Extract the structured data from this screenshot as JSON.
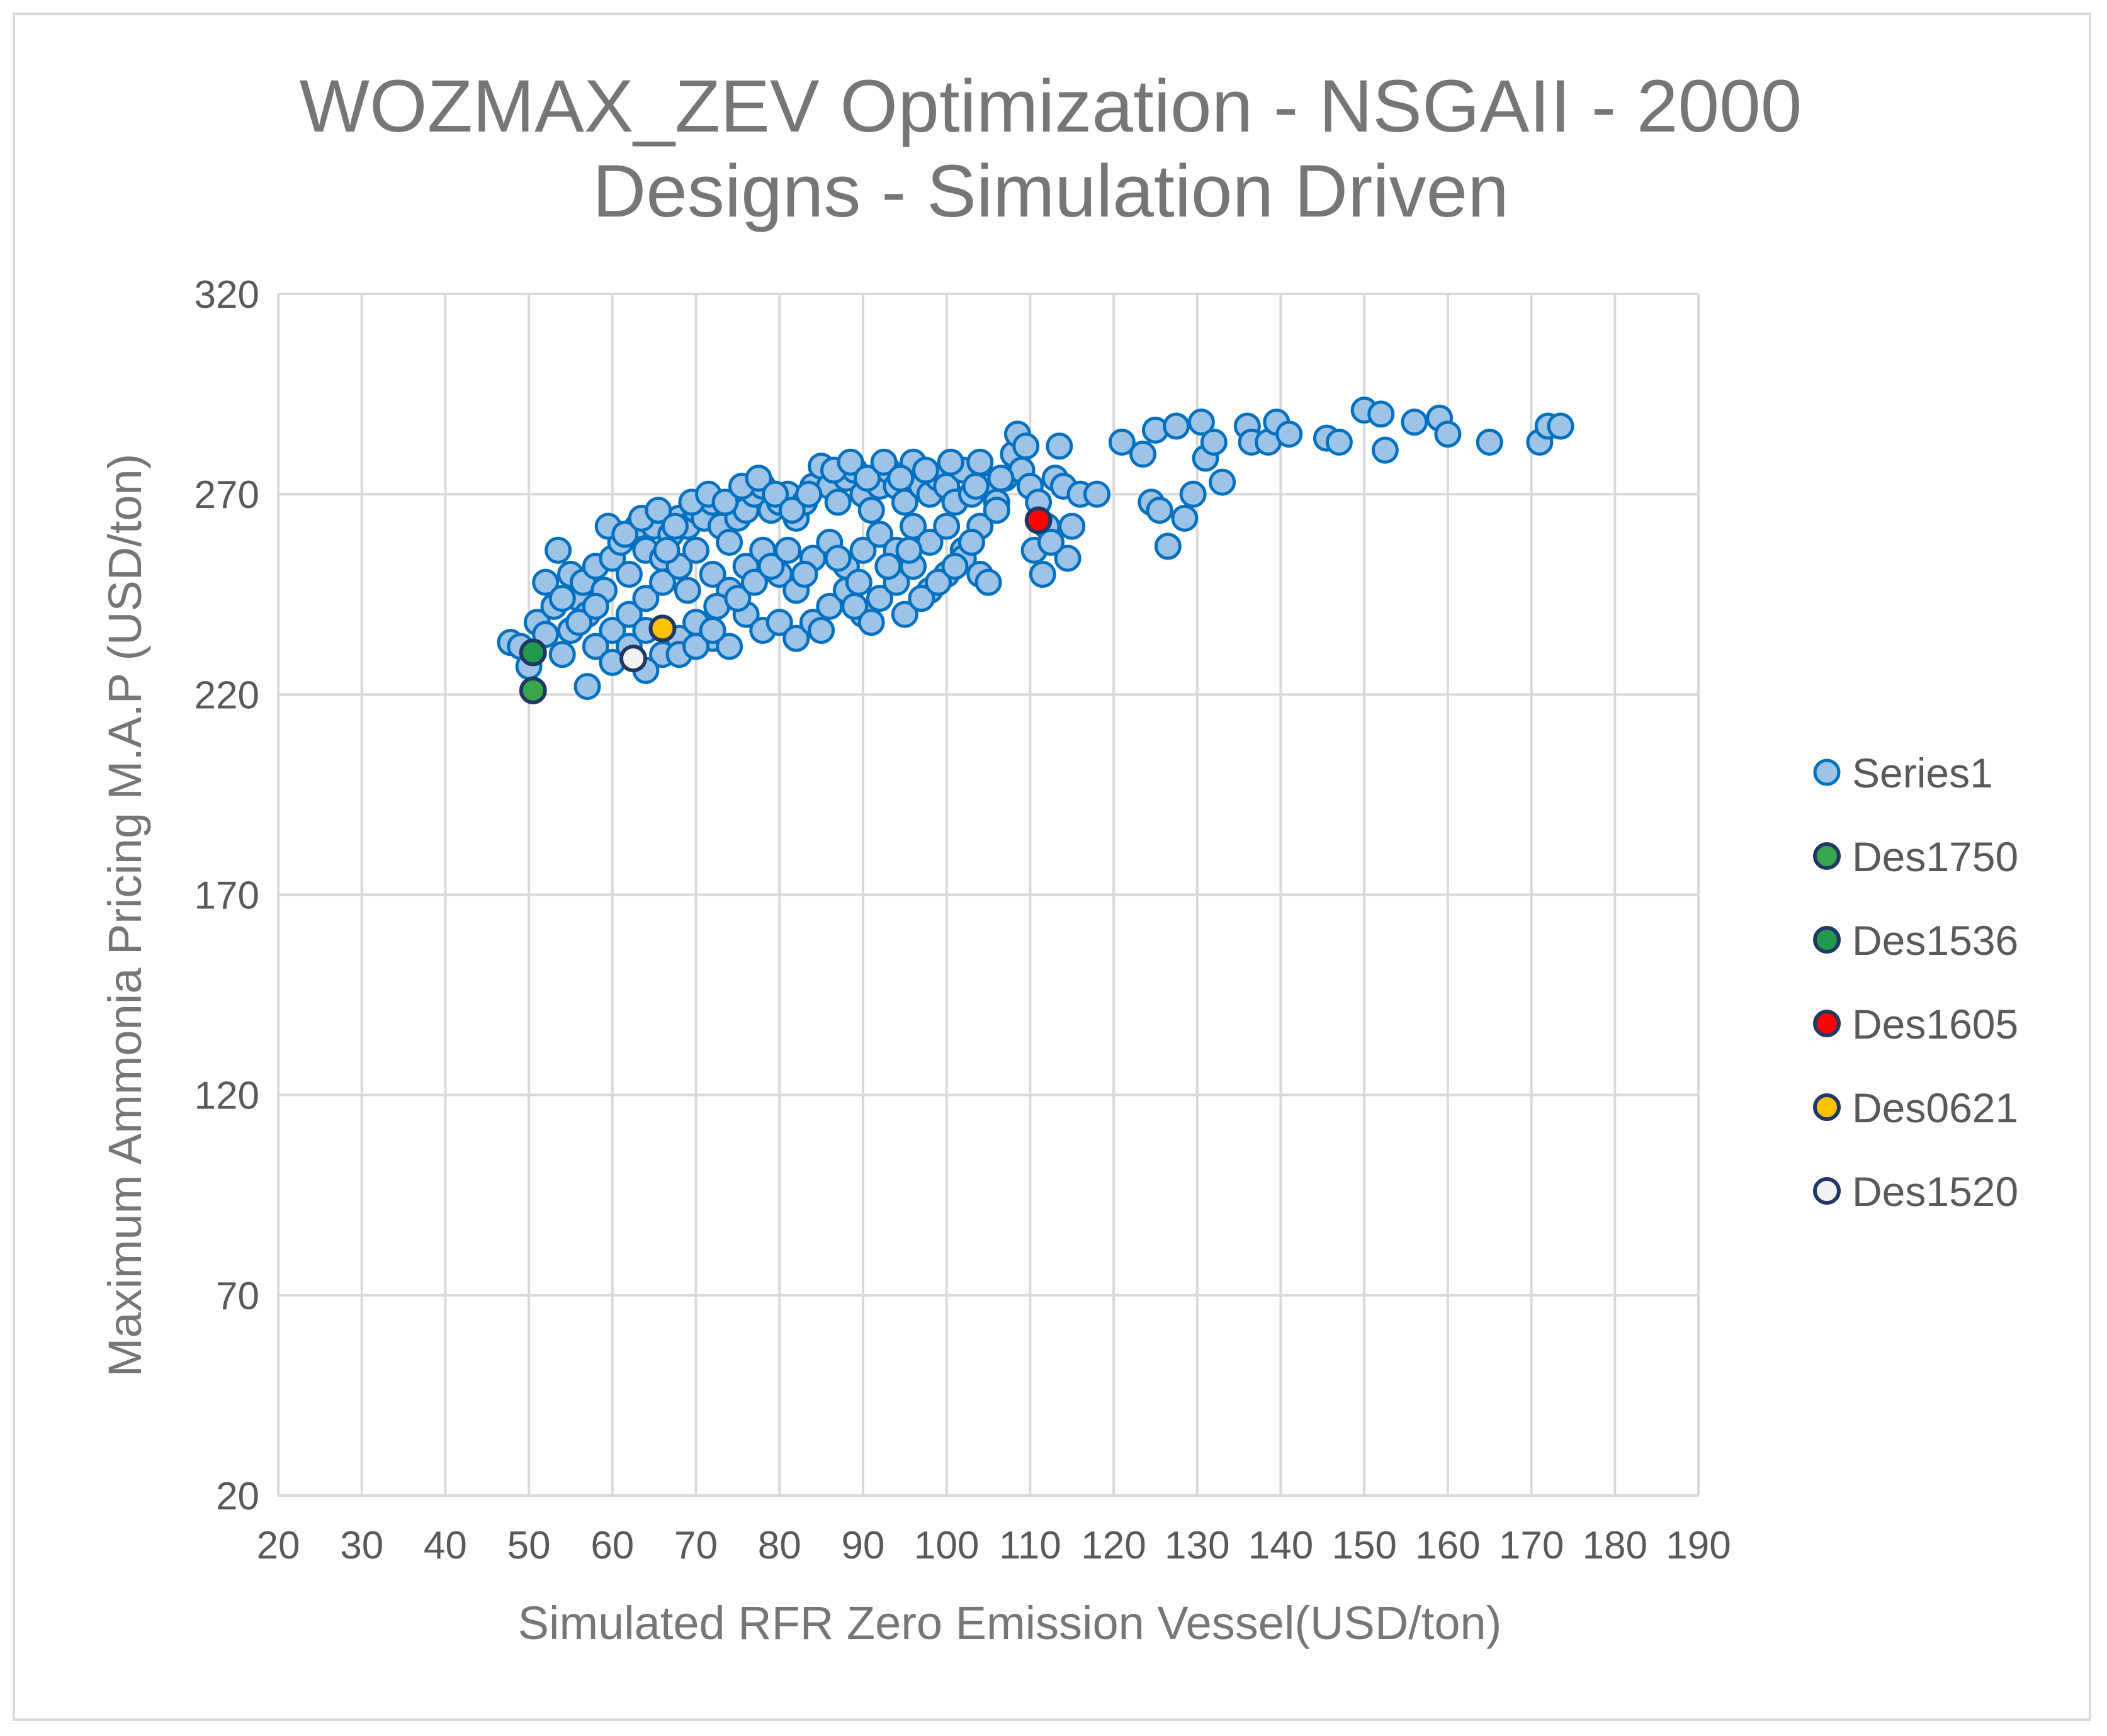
{
  "chart_data": {
    "type": "scatter",
    "title_lines": [
      "WOZMAX_ZEV Optimization - NSGAII - 2000",
      "Designs - Simulation Driven"
    ],
    "xlabel": "Simulated RFR Zero Emission Vessel(USD/ton)",
    "ylabel": "Maximum Ammonia Pricing M.A.P (USD/ton)",
    "xlim": [
      20,
      190
    ],
    "ylim": [
      20,
      320
    ],
    "xticks": [
      20,
      30,
      40,
      50,
      60,
      70,
      80,
      90,
      100,
      110,
      120,
      130,
      140,
      150,
      160,
      170,
      180,
      190
    ],
    "yticks": [
      20,
      70,
      120,
      170,
      220,
      270,
      320
    ],
    "grid": true,
    "legend_position": "right",
    "series": [
      {
        "name": "Series1",
        "fill": "#9dc3e6",
        "stroke": "#0070c0",
        "points": [
          [
            47.8,
            233
          ],
          [
            49.0,
            232
          ],
          [
            50.0,
            227
          ],
          [
            51.0,
            238
          ],
          [
            52.0,
            235
          ],
          [
            53.0,
            242
          ],
          [
            54.0,
            230
          ],
          [
            55.0,
            236
          ],
          [
            56.0,
            244
          ],
          [
            57.0,
            240
          ],
          [
            53.5,
            256
          ],
          [
            55.0,
            250
          ],
          [
            56.5,
            248
          ],
          [
            58.0,
            252
          ],
          [
            59.0,
            246
          ],
          [
            60.0,
            254
          ],
          [
            61.0,
            258
          ],
          [
            62.0,
            250
          ],
          [
            63.0,
            262
          ],
          [
            64.0,
            256
          ],
          [
            65.0,
            262
          ],
          [
            66.0,
            254
          ],
          [
            67.0,
            260
          ],
          [
            68.0,
            264
          ],
          [
            69.0,
            262
          ],
          [
            70.0,
            266
          ],
          [
            71.0,
            264
          ],
          [
            72.0,
            268
          ],
          [
            73.0,
            262
          ],
          [
            74.0,
            258
          ],
          [
            75.0,
            264
          ],
          [
            76.0,
            266
          ],
          [
            77.0,
            270
          ],
          [
            78.0,
            272
          ],
          [
            79.0,
            266
          ],
          [
            80.0,
            268
          ],
          [
            81.0,
            270
          ],
          [
            82.0,
            264
          ],
          [
            83.0,
            268
          ],
          [
            84.0,
            272
          ],
          [
            85.0,
            277
          ],
          [
            86.0,
            272
          ],
          [
            87.0,
            268
          ],
          [
            88.0,
            274
          ],
          [
            89.0,
            276
          ],
          [
            90.0,
            270
          ],
          [
            91.0,
            266
          ],
          [
            92.0,
            272
          ],
          [
            93.0,
            276
          ],
          [
            94.0,
            272
          ],
          [
            95.0,
            268
          ],
          [
            96.0,
            278
          ],
          [
            97.0,
            272
          ],
          [
            98.0,
            270
          ],
          [
            99.0,
            274
          ],
          [
            100.0,
            272
          ],
          [
            101.0,
            268
          ],
          [
            102.0,
            276
          ],
          [
            103.0,
            270
          ],
          [
            104.0,
            278
          ],
          [
            105.0,
            272
          ],
          [
            106.0,
            268
          ],
          [
            107.0,
            274
          ],
          [
            108.0,
            280
          ],
          [
            109.0,
            276
          ],
          [
            110.0,
            272
          ],
          [
            111.0,
            268
          ],
          [
            112.0,
            262
          ],
          [
            113.0,
            274
          ],
          [
            114.0,
            272
          ],
          [
            115.0,
            262
          ],
          [
            116.0,
            270
          ],
          [
            118.0,
            270
          ],
          [
            108.5,
            285
          ],
          [
            109.5,
            282
          ],
          [
            110.5,
            256
          ],
          [
            111.5,
            250
          ],
          [
            113.5,
            282
          ],
          [
            114.5,
            254
          ],
          [
            112.5,
            258
          ],
          [
            121.0,
            283
          ],
          [
            123.5,
            280
          ],
          [
            125.0,
            286
          ],
          [
            124.5,
            268
          ],
          [
            125.5,
            266
          ],
          [
            126.5,
            257
          ],
          [
            127.5,
            287
          ],
          [
            128.5,
            264
          ],
          [
            129.5,
            270
          ],
          [
            130.5,
            288
          ],
          [
            131.0,
            279
          ],
          [
            132.0,
            283
          ],
          [
            133.0,
            273
          ],
          [
            136.0,
            287
          ],
          [
            136.5,
            283
          ],
          [
            138.5,
            283
          ],
          [
            139.5,
            288
          ],
          [
            141.0,
            285
          ],
          [
            145.5,
            284
          ],
          [
            147.0,
            283
          ],
          [
            150.0,
            291
          ],
          [
            152.0,
            290
          ],
          [
            152.5,
            281
          ],
          [
            156.0,
            288
          ],
          [
            159.0,
            289
          ],
          [
            160.0,
            285
          ],
          [
            165.0,
            283
          ],
          [
            171.0,
            283
          ],
          [
            172.0,
            287
          ],
          [
            173.5,
            287
          ],
          [
            52.0,
            248
          ],
          [
            54.0,
            244
          ],
          [
            56.0,
            238
          ],
          [
            58.0,
            242
          ],
          [
            60.0,
            236
          ],
          [
            62.0,
            240
          ],
          [
            64.0,
            244
          ],
          [
            66.0,
            248
          ],
          [
            68.0,
            252
          ],
          [
            70.0,
            256
          ],
          [
            72.0,
            250
          ],
          [
            74.0,
            246
          ],
          [
            76.0,
            252
          ],
          [
            78.0,
            256
          ],
          [
            80.0,
            250
          ],
          [
            82.0,
            246
          ],
          [
            84.0,
            254
          ],
          [
            86.0,
            258
          ],
          [
            88.0,
            252
          ],
          [
            90.0,
            256
          ],
          [
            92.0,
            260
          ],
          [
            94.0,
            256
          ],
          [
            96.0,
            262
          ],
          [
            98.0,
            258
          ],
          [
            100.0,
            262
          ],
          [
            102.0,
            256
          ],
          [
            104.0,
            262
          ],
          [
            106.0,
            266
          ],
          [
            58.0,
            232
          ],
          [
            60.0,
            228
          ],
          [
            62.0,
            232
          ],
          [
            64.0,
            236
          ],
          [
            66.0,
            230
          ],
          [
            68.0,
            234
          ],
          [
            70.0,
            238
          ],
          [
            72.0,
            234
          ],
          [
            74.0,
            232
          ],
          [
            76.0,
            240
          ],
          [
            78.0,
            236
          ],
          [
            80.0,
            238
          ],
          [
            82.0,
            234
          ],
          [
            84.0,
            238
          ],
          [
            86.0,
            242
          ],
          [
            88.0,
            246
          ],
          [
            90.0,
            240
          ],
          [
            92.0,
            244
          ],
          [
            94.0,
            248
          ],
          [
            96.0,
            252
          ],
          [
            98.0,
            246
          ],
          [
            100.0,
            250
          ],
          [
            102.0,
            254
          ],
          [
            104.0,
            250
          ],
          [
            64.0,
            226
          ],
          [
            68.0,
            230
          ],
          [
            70.0,
            232
          ],
          [
            72.0,
            236
          ],
          [
            57.0,
            222
          ],
          [
            85.0,
            236
          ],
          [
            89.0,
            242
          ],
          [
            91.0,
            238
          ],
          [
            95.0,
            240
          ],
          [
            97.0,
            244
          ],
          [
            99.0,
            248
          ],
          [
            101.0,
            252
          ],
          [
            103.0,
            258
          ],
          [
            105.0,
            248
          ],
          [
            59.5,
            262
          ],
          [
            61.5,
            260
          ],
          [
            63.5,
            264
          ],
          [
            65.5,
            266
          ],
          [
            67.5,
            262
          ],
          [
            69.5,
            268
          ],
          [
            71.5,
            270
          ],
          [
            73.5,
            268
          ],
          [
            75.5,
            272
          ],
          [
            77.5,
            274
          ],
          [
            79.5,
            270
          ],
          [
            81.5,
            266
          ],
          [
            83.5,
            270
          ],
          [
            86.5,
            276
          ],
          [
            88.5,
            278
          ],
          [
            90.5,
            274
          ],
          [
            92.5,
            278
          ],
          [
            94.5,
            274
          ],
          [
            97.5,
            276
          ],
          [
            100.5,
            278
          ],
          [
            103.5,
            272
          ],
          [
            106.5,
            274
          ],
          [
            66.5,
            256
          ],
          [
            69.0,
            246
          ],
          [
            72.5,
            242
          ],
          [
            75.0,
            244
          ],
          [
            77.0,
            248
          ],
          [
            79.0,
            252
          ],
          [
            81.0,
            256
          ],
          [
            83.0,
            250
          ],
          [
            87.0,
            254
          ],
          [
            89.5,
            248
          ],
          [
            93.0,
            252
          ],
          [
            95.5,
            256
          ]
        ]
      },
      {
        "name": "Des1750",
        "fill": "#3aa64b",
        "stroke": "#203864",
        "points": [
          [
            50.5,
            221
          ]
        ]
      },
      {
        "name": "Des1536",
        "fill": "#1f9a4e",
        "stroke": "#203864",
        "points": [
          [
            50.5,
            230.5
          ]
        ]
      },
      {
        "name": "Des1605",
        "fill": "#ff0000",
        "stroke": "#203864",
        "points": [
          [
            111.0,
            263.5
          ]
        ]
      },
      {
        "name": "Des0621",
        "fill": "#ffc000",
        "stroke": "#203864",
        "points": [
          [
            66.0,
            236.5
          ]
        ]
      },
      {
        "name": "Des1520",
        "fill": "#f2f2f2",
        "stroke": "#203864",
        "points": [
          [
            62.5,
            229
          ]
        ]
      }
    ]
  }
}
